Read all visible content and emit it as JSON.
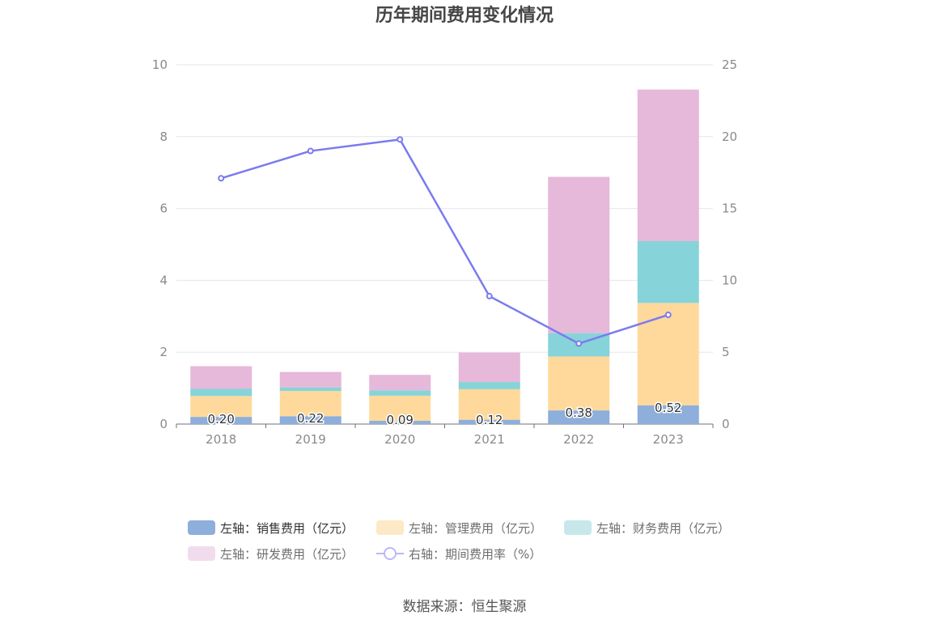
{
  "chart_data": {
    "type": "bar",
    "title": "历年期间费用变化情况",
    "categories": [
      "2018",
      "2019",
      "2020",
      "2021",
      "2022",
      "2023"
    ],
    "y_left": {
      "ylim": [
        0,
        10
      ],
      "ticks": [
        "0",
        "2",
        "4",
        "6",
        "8",
        "10"
      ]
    },
    "y_right": {
      "ylim": [
        0,
        25
      ],
      "ticks": [
        "0",
        "5",
        "10",
        "15",
        "20",
        "25"
      ]
    },
    "series": [
      {
        "name": "左轴：销售费用（亿元）",
        "kind": "bar",
        "axis": "left",
        "color": "#8eaedb",
        "values": [
          0.2,
          0.22,
          0.09,
          0.12,
          0.38,
          0.52
        ],
        "labels": [
          "0.20",
          "0.22",
          "0.09",
          "0.12",
          "0.38",
          "0.52"
        ]
      },
      {
        "name": "左轴：管理费用（亿元）",
        "kind": "bar",
        "axis": "left",
        "color": "#ffd99b",
        "values": [
          0.58,
          0.7,
          0.7,
          0.85,
          1.5,
          2.85
        ]
      },
      {
        "name": "左轴：财务费用（亿元）",
        "kind": "bar",
        "axis": "left",
        "color": "#86d4d9",
        "values": [
          0.2,
          0.1,
          0.15,
          0.2,
          0.65,
          1.72
        ]
      },
      {
        "name": "左轴：研发费用（亿元）",
        "kind": "bar",
        "axis": "left",
        "color": "#e6b8d9",
        "values": [
          0.63,
          0.43,
          0.43,
          0.82,
          4.35,
          4.22
        ]
      },
      {
        "name": "右轴：期间费用率（%）",
        "kind": "line",
        "axis": "right",
        "color": "#7b7bef",
        "values": [
          17.1,
          19.0,
          19.8,
          8.9,
          5.6,
          7.6
        ]
      }
    ],
    "legend_position": "bottom",
    "grid": true
  },
  "source": "数据来源：恒生聚源"
}
